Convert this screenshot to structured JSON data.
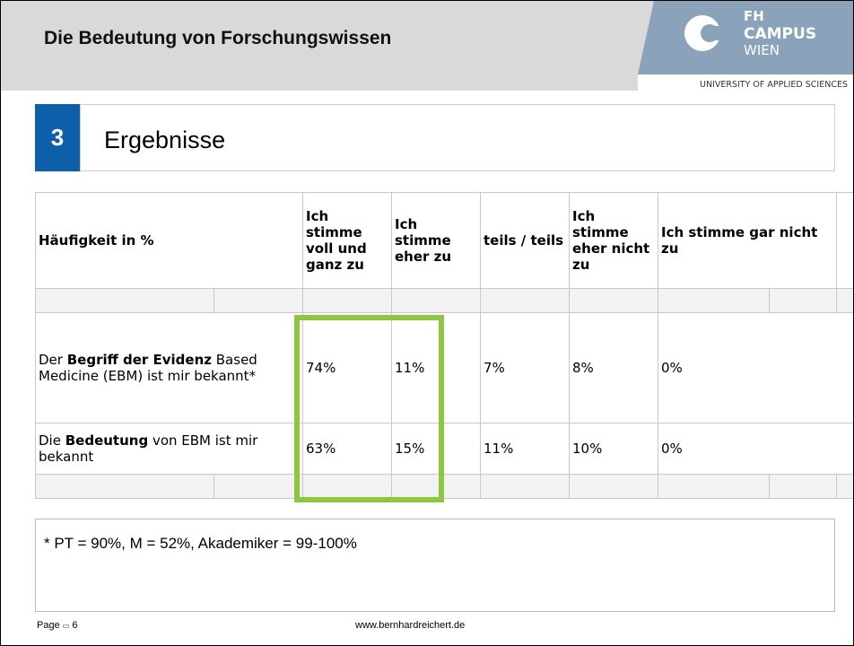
{
  "header": {
    "title": "Die Bedeutung von Forschungswissen",
    "logo": {
      "line1": "FH",
      "line2": "CAMPUS",
      "line3": "WIEN",
      "tagline": "UNIVERSITY OF APPLIED SCIENCES"
    }
  },
  "section": {
    "number": "3",
    "title": "Ergebnisse"
  },
  "table": {
    "header": [
      "Häufigkeit in %",
      "Ich stimme voll und ganz zu",
      "Ich stimme eher zu",
      "teils / teils",
      "Ich stimme eher nicht zu",
      "Ich stimme gar nicht zu"
    ],
    "rows": [
      {
        "label": [
          "Der ",
          "Begriff der Evidenz",
          " Based Medicine (EBM) ist mir bekannt*"
        ],
        "cells": [
          "74%",
          "11%",
          "7%",
          "8%",
          "0%"
        ]
      },
      {
        "label": [
          "Die ",
          "Bedeutung",
          " von EBM ist mir bekannt"
        ],
        "cells": [
          "63%",
          "15%",
          "11%",
          "10%",
          "0%"
        ]
      }
    ]
  },
  "footnote": "* PT = 90%, M = 52%, Akademiker = 99-100%",
  "footer": {
    "page_label": "Page",
    "page": "6",
    "website": "www.bernhardreichert.de"
  }
}
